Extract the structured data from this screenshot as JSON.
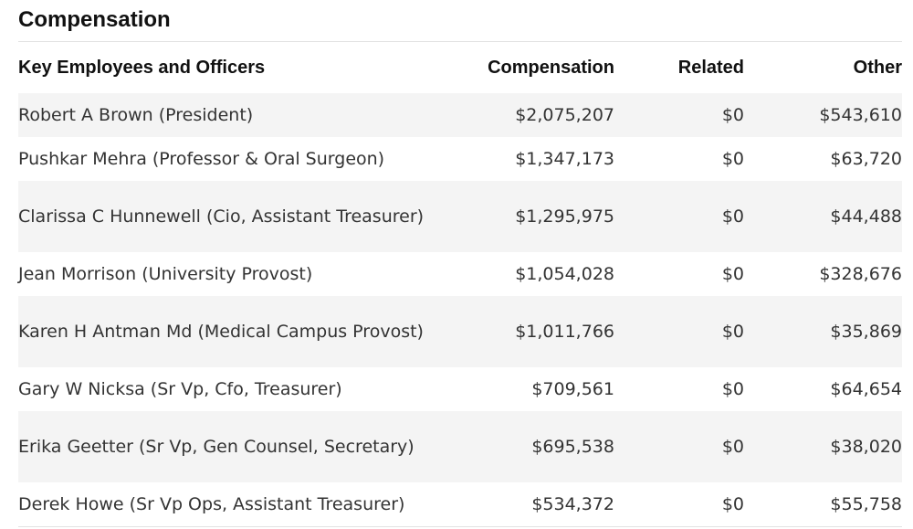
{
  "section": {
    "title": "Compensation"
  },
  "table": {
    "headers": {
      "name": "Key Employees and Officers",
      "compensation": "Compensation",
      "related": "Related",
      "other": "Other"
    },
    "rows": [
      {
        "name": "Robert A Brown (President)",
        "compensation": "$2,075,207",
        "related": "$0",
        "other": "$543,610"
      },
      {
        "name": "Pushkar Mehra (Professor & Oral Surgeon)",
        "compensation": "$1,347,173",
        "related": "$0",
        "other": "$63,720"
      },
      {
        "name": "Clarissa C Hunnewell (Cio, Assistant Treasurer)",
        "compensation": "$1,295,975",
        "related": "$0",
        "other": "$44,488"
      },
      {
        "name": "Jean Morrison (University Provost)",
        "compensation": "$1,054,028",
        "related": "$0",
        "other": "$328,676"
      },
      {
        "name": "Karen H Antman Md (Medical Campus Provost)",
        "compensation": "$1,011,766",
        "related": "$0",
        "other": "$35,869"
      },
      {
        "name": "Gary W Nicksa (Sr Vp, Cfo, Treasurer)",
        "compensation": "$709,561",
        "related": "$0",
        "other": "$64,654"
      },
      {
        "name": "Erika Geetter (Sr Vp, Gen Counsel, Secretary)",
        "compensation": "$695,538",
        "related": "$0",
        "other": "$38,020"
      },
      {
        "name": "Derek Howe (Sr Vp Ops, Assistant Treasurer)",
        "compensation": "$534,372",
        "related": "$0",
        "other": "$55,758"
      }
    ]
  }
}
